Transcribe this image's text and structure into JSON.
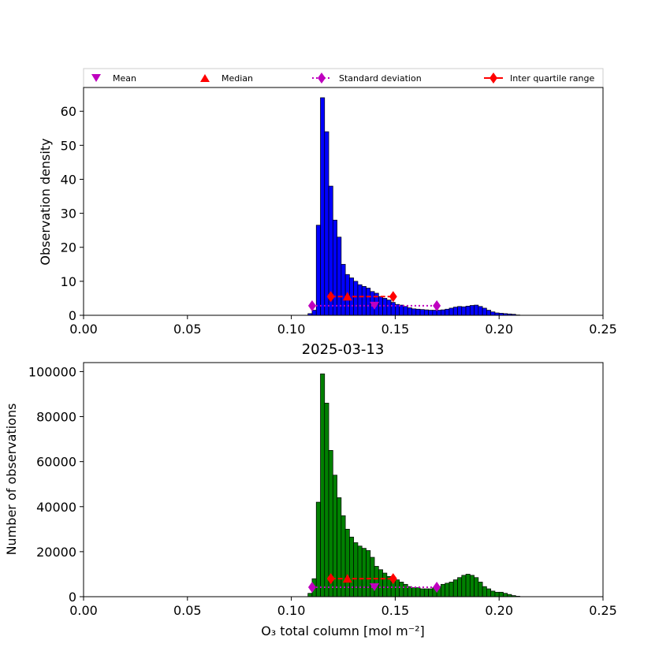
{
  "legend": {
    "mean_label": "Mean",
    "median_label": "Median",
    "std_label": "Standard deviation",
    "iqr_label": "Inter quartile range"
  },
  "colors": {
    "top_bars": "#0000ff",
    "bottom_bars": "#008000",
    "mean_marker": "#bf00bf",
    "std_marker": "#bf00bf",
    "median_marker": "#ff0000",
    "iqr_marker": "#ff0000"
  },
  "chart_data": [
    {
      "type": "bar",
      "title": "",
      "xlabel": "",
      "ylabel": "Observation density",
      "xlim": [
        0.0,
        0.25
      ],
      "ylim": [
        0,
        67
      ],
      "xticks": [
        0.0,
        0.05,
        0.1,
        0.15,
        0.2,
        0.25
      ],
      "xtick_labels": [
        "0.00",
        "0.05",
        "0.10",
        "0.15",
        "0.20",
        "0.25"
      ],
      "yticks": [
        0,
        10,
        20,
        30,
        40,
        50,
        60
      ],
      "ytick_labels": [
        "0",
        "10",
        "20",
        "30",
        "40",
        "50",
        "60"
      ],
      "bin_start": 0.108,
      "bin_width": 0.002,
      "values": [
        0.5,
        1.5,
        26.5,
        64,
        54,
        38,
        28,
        23,
        15,
        12,
        11,
        10,
        9,
        8.5,
        8,
        7,
        6.5,
        5.5,
        5,
        4.5,
        3.8,
        3.2,
        3,
        2.6,
        2.2,
        1.9,
        1.8,
        1.7,
        1.6,
        1.5,
        1.5,
        1.5,
        1.6,
        1.8,
        2.1,
        2.4,
        2.6,
        2.5,
        2.7,
        2.9,
        3,
        2.6,
        2.1,
        1.5,
        1,
        0.7,
        0.6,
        0.5,
        0.4,
        0.3,
        0.1
      ],
      "stats": {
        "mean": {
          "x": 0.14,
          "y": 2.8
        },
        "std": {
          "x_low": 0.11,
          "x_high": 0.17,
          "y": 2.8
        },
        "median": {
          "x": 0.127,
          "y": 5.5
        },
        "iqr": {
          "x_low": 0.119,
          "x_high": 0.149,
          "y": 5.5
        }
      }
    },
    {
      "type": "bar",
      "title": "2025-03-13",
      "xlabel": "O₃ total column [mol m⁻²]",
      "ylabel": "Number of observations",
      "xlim": [
        0.0,
        0.25
      ],
      "ylim": [
        0,
        104000
      ],
      "xticks": [
        0.0,
        0.05,
        0.1,
        0.15,
        0.2,
        0.25
      ],
      "xtick_labels": [
        "0.00",
        "0.05",
        "0.10",
        "0.15",
        "0.20",
        "0.25"
      ],
      "yticks": [
        0,
        20000,
        40000,
        60000,
        80000,
        100000
      ],
      "ytick_labels": [
        "0",
        "20000",
        "40000",
        "60000",
        "80000",
        "100000"
      ],
      "bin_start": 0.108,
      "bin_width": 0.002,
      "values": [
        1500,
        8000,
        42000,
        99000,
        86000,
        65000,
        54000,
        44000,
        36000,
        30000,
        26500,
        24000,
        22500,
        21500,
        20500,
        17500,
        13500,
        12000,
        10500,
        9000,
        8000,
        7500,
        6500,
        5500,
        4500,
        4000,
        4000,
        3500,
        3500,
        3500,
        4000,
        4500,
        5500,
        6000,
        6500,
        7500,
        8500,
        9500,
        10000,
        9500,
        8500,
        6500,
        4500,
        3500,
        2500,
        2000,
        2000,
        1500,
        1000,
        500,
        200
      ],
      "stats": {
        "mean": {
          "x": 0.14,
          "y": 4200
        },
        "std": {
          "x_low": 0.11,
          "x_high": 0.17,
          "y": 4200
        },
        "median": {
          "x": 0.127,
          "y": 8000
        },
        "iqr": {
          "x_low": 0.119,
          "x_high": 0.149,
          "y": 8000
        }
      }
    }
  ]
}
